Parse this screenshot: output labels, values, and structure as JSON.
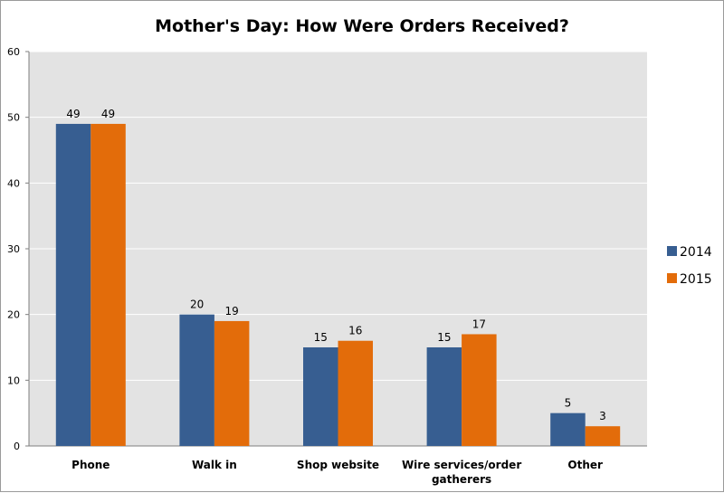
{
  "chart_data": {
    "type": "bar",
    "title": "Mother's Day: How Were Orders Received?",
    "xlabel": "",
    "ylabel": "",
    "categories": [
      [
        "Phone"
      ],
      [
        "Walk in"
      ],
      [
        "Shop website"
      ],
      [
        "Wire services/order",
        "gatherers"
      ],
      [
        "Other"
      ]
    ],
    "series": [
      {
        "name": "2014",
        "color": "#375e91",
        "values": [
          49,
          20,
          15,
          15,
          5
        ]
      },
      {
        "name": "2015",
        "color": "#e36c0a",
        "values": [
          49,
          19,
          16,
          17,
          3
        ]
      }
    ],
    "ylim": [
      0,
      60
    ],
    "yticks": [
      0,
      10,
      20,
      30,
      40,
      50,
      60
    ],
    "grid": true,
    "plot_background": "#e3e3e3",
    "legend_position": "right"
  }
}
